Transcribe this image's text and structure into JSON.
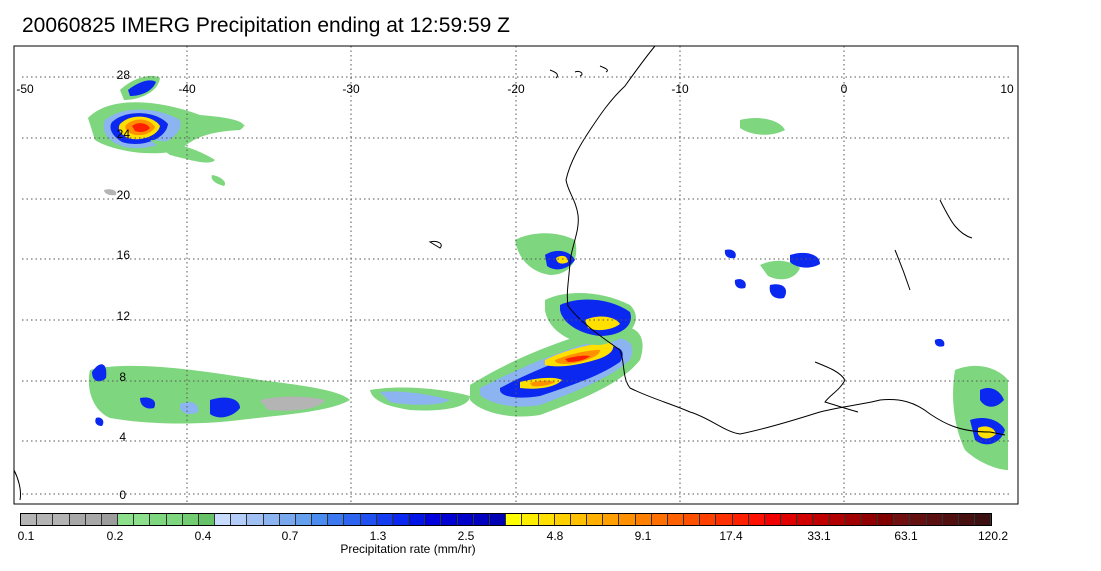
{
  "title": "20060825 IMERG Precipitation ending at 12:59:59 Z",
  "map": {
    "lon_range": [
      -50,
      10
    ],
    "lat_range": [
      -0.5,
      29
    ],
    "lon_ticks": [
      "-50",
      "-40",
      "-30",
      "-20",
      "-10",
      "0",
      "10"
    ],
    "lat_ticks": [
      "0",
      "4",
      "8",
      "12",
      "16",
      "20",
      "24",
      "28"
    ],
    "grid": "dotted"
  },
  "colorbar": {
    "title": "Precipitation rate (mm/hr)",
    "tick_labels": [
      "0.1",
      "0.2",
      "0.4",
      "0.7",
      "1.3",
      "2.5",
      "4.8",
      "9.1",
      "17.4",
      "33.1",
      "63.1",
      "120.2"
    ],
    "colors": [
      "#b4b4b4",
      "#b4b4b4",
      "#b4b4b4",
      "#a8a8a8",
      "#a8a8a8",
      "#9c9c9c",
      "#8ce08c",
      "#8ce08c",
      "#7ed67e",
      "#7ed67e",
      "#72cc72",
      "#66c266",
      "#c8dcff",
      "#b4cdf8",
      "#a0c0f4",
      "#8cb4f0",
      "#78a8ee",
      "#64a0ee",
      "#4b8cf0",
      "#3c78f0",
      "#2d64f0",
      "#2050f0",
      "#143cf0",
      "#0a28f0",
      "#0014e6",
      "#0000dc",
      "#0000d2",
      "#0000c8",
      "#0000be",
      "#0000b4",
      "#ffff00",
      "#ffee00",
      "#ffe000",
      "#ffd000",
      "#ffc000",
      "#ffb000",
      "#ffa000",
      "#ff9000",
      "#ff8000",
      "#ff7000",
      "#ff6000",
      "#ff5000",
      "#ff4000",
      "#ff3000",
      "#ff2000",
      "#ff1000",
      "#f00000",
      "#e00000",
      "#d00000",
      "#c00000",
      "#b00000",
      "#a00000",
      "#900000",
      "#800000",
      "#701010",
      "#641010",
      "#5a1010",
      "#501010",
      "#461010",
      "#3c1010"
    ]
  },
  "precip_legend_colors": {
    "gray": "#b4b4b4",
    "green": "#7ed67e",
    "lightblue": "#8cb4f0",
    "blue": "#0a28f0",
    "yellow": "#ffe000",
    "orange": "#ff9000",
    "red": "#ff2000"
  }
}
